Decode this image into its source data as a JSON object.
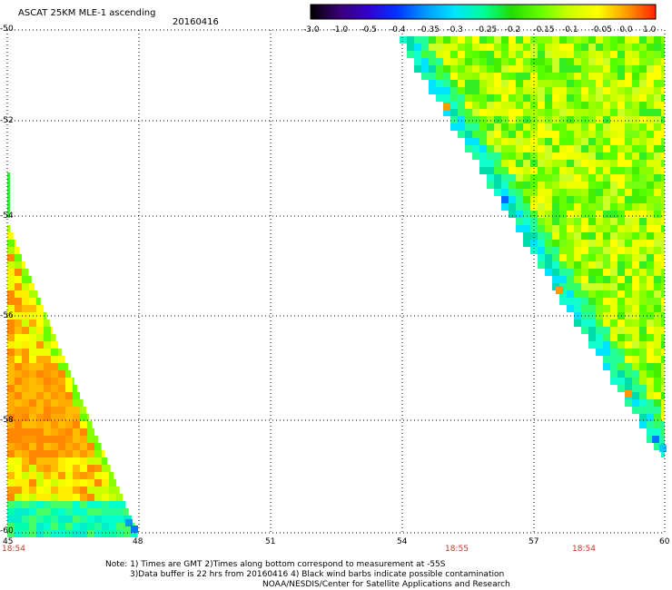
{
  "title": "ASCAT 25KM MLE-1 ascending",
  "date": "20160416",
  "colorbar": {
    "ticks": [
      "-3.0",
      "-1.0",
      "-0.5",
      "-0.4",
      "-0.35",
      "-0.3",
      "-0.25",
      "-0.2",
      "-0.15",
      "-0.1",
      "-0.05",
      "0.0",
      "1.0"
    ],
    "colors": [
      "#000000",
      "#3a0078",
      "#3300cc",
      "#0033ff",
      "#0099ff",
      "#00e5ff",
      "#00ff99",
      "#22dd00",
      "#66ff00",
      "#ccff00",
      "#ffff00",
      "#ff9900",
      "#ff2200"
    ]
  },
  "y_axis": {
    "labels": [
      "-50",
      "-52",
      "-54",
      "-56",
      "-58",
      "-60"
    ]
  },
  "x_axis": {
    "labels": [
      "45",
      "48",
      "51",
      "54",
      "57",
      "60"
    ]
  },
  "times": [
    "18:54",
    "18:55",
    "18:54"
  ],
  "notes": [
    "Note: 1) Times are GMT 2)Times along bottom correspond to measurement at -55S",
    "3)Data buffer is 22 hrs from 20160416 4) Black wind barbs indicate possible contamination",
    "NOAA/NESDIS/Center for Satellite Applications and Research"
  ],
  "swaths": [
    {
      "name": "east swath",
      "predominant": "green-yellow",
      "edge": "cyan-blue"
    },
    {
      "name": "west swath",
      "predominant": "orange-yellow",
      "edge": "cyan-green"
    }
  ]
}
